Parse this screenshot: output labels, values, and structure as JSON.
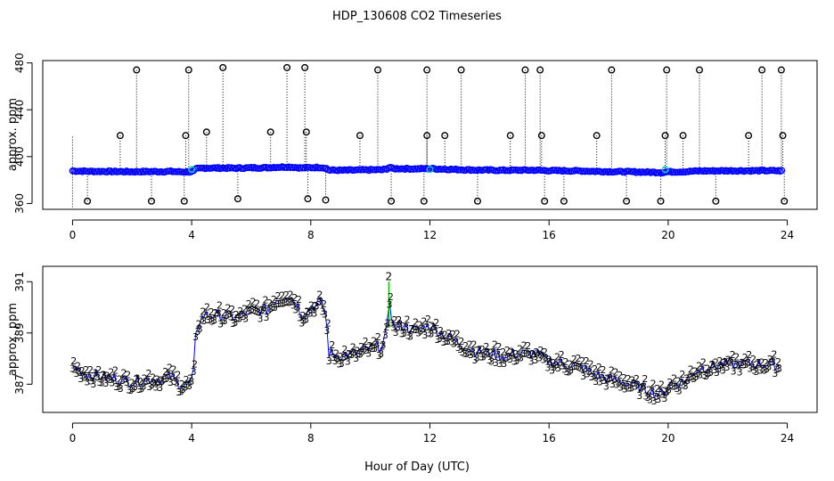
{
  "chart_data": [
    {
      "type": "scatter",
      "title": "HDP_130608  CO2 Timeseries",
      "xlabel": "",
      "ylabel": "approx. ppm",
      "xlim": [
        -1,
        25
      ],
      "ylim": [
        355,
        482
      ],
      "xticks": [
        0,
        4,
        8,
        12,
        16,
        20,
        24
      ],
      "yticks": [
        360,
        400,
        440,
        480
      ],
      "xtick_labels": [
        "0",
        "4",
        "8",
        "12",
        "16",
        "20",
        "24"
      ],
      "ytick_labels": [
        "360",
        "400",
        "440",
        "480"
      ],
      "colors": {
        "main": "#0000ff",
        "outlier": "#000000",
        "highlight": "#00cccc"
      },
      "series": [
        {
          "name": "outliers_high",
          "x": [
            2.15,
            3.9,
            5.05,
            7.2,
            7.8,
            10.25,
            11.9,
            13.05,
            15.2,
            15.7,
            18.1,
            19.95,
            21.05,
            23.15,
            23.8
          ],
          "values": [
            474,
            474,
            476,
            476,
            476,
            474,
            474,
            474,
            474,
            474,
            474,
            474,
            474,
            474,
            474
          ]
        },
        {
          "name": "outliers_mid",
          "x": [
            1.6,
            3.8,
            4.5,
            6.65,
            7.85,
            9.65,
            11.9,
            12.5,
            14.7,
            15.75,
            17.6,
            19.9,
            20.5,
            22.7,
            23.85
          ],
          "values": [
            418,
            418,
            421,
            421,
            421,
            418,
            418,
            418,
            418,
            418,
            418,
            418,
            418,
            418,
            418
          ]
        },
        {
          "name": "outliers_low",
          "x": [
            0.5,
            2.65,
            3.75,
            5.55,
            7.9,
            8.5,
            10.7,
            11.8,
            13.6,
            15.85,
            16.5,
            18.6,
            19.75,
            21.6,
            23.9
          ],
          "values": [
            362,
            362,
            362,
            364,
            364,
            363,
            362,
            362,
            362,
            362,
            362,
            362,
            362,
            362,
            362
          ]
        }
      ]
    },
    {
      "type": "scatter",
      "title": "",
      "xlabel": "Hour of Day (UTC)",
      "ylabel": "approx. ppm",
      "xlim": [
        -1,
        25
      ],
      "ylim": [
        385.9,
        391.6
      ],
      "xticks": [
        0,
        4,
        8,
        12,
        16,
        20,
        24
      ],
      "yticks": [
        387,
        389,
        391
      ],
      "xtick_labels": [
        "0",
        "4",
        "8",
        "12",
        "16",
        "20",
        "24"
      ],
      "ytick_labels": [
        "387",
        "389",
        "391"
      ],
      "colors": {
        "series2": "#00cc00",
        "series3": "#0000ff",
        "line": "#0000ff"
      },
      "series": [
        {
          "name": "2",
          "marker": "2"
        },
        {
          "name": "3",
          "marker": "3"
        }
      ]
    }
  ]
}
